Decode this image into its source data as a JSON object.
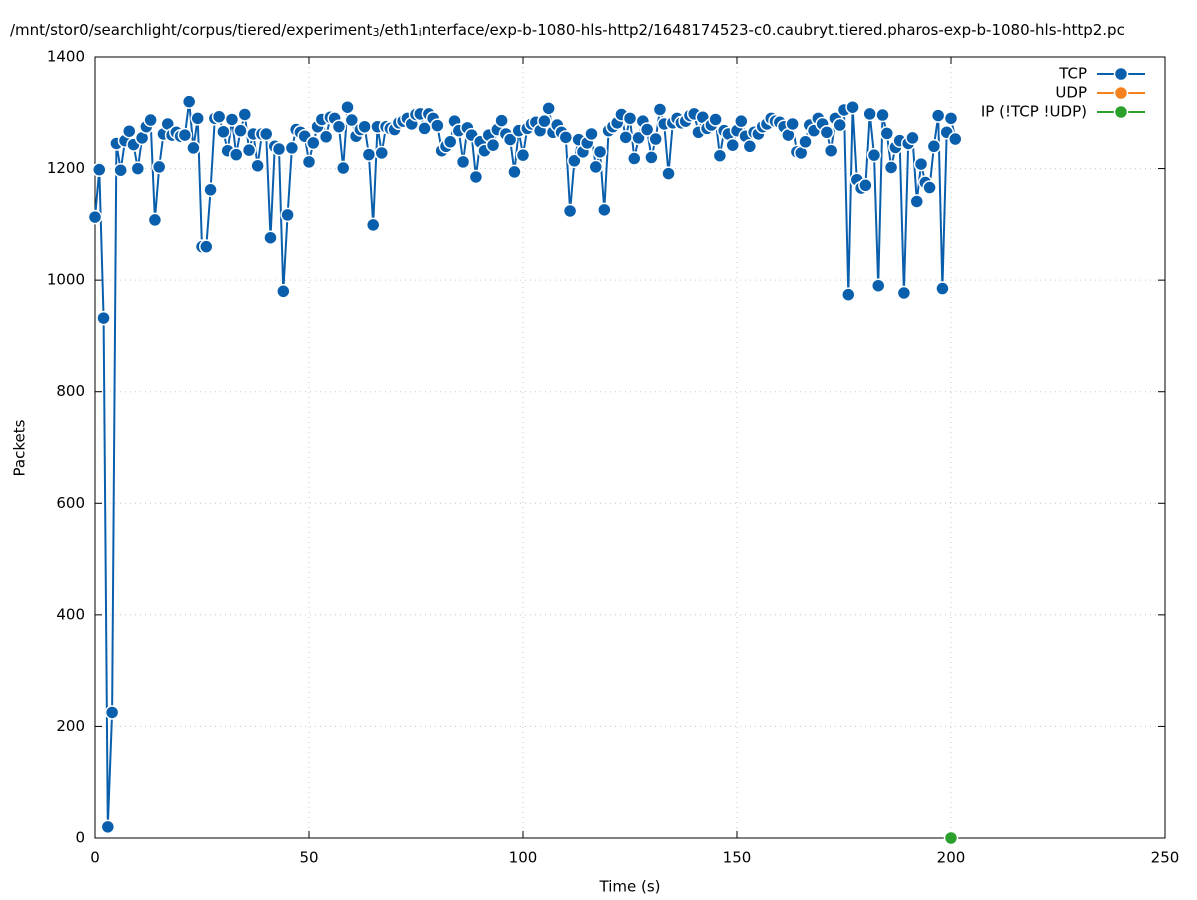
{
  "chart_data": {
    "type": "line",
    "title": [
      "/mnt/stor0/searchlight/corpus/tiered/experiment",
      "3",
      "/eth1",
      "i",
      "nterface/exp-b-1080-hls-http2/1648174523-c0.caubryt.tiered.pharos-exp-b-1080-hls-http2.pc"
    ],
    "xlabel": "Time (s)",
    "ylabel": "Packets",
    "xlim": [
      0,
      250
    ],
    "xticks": [
      0,
      50,
      100,
      150,
      200,
      250
    ],
    "ylim": [
      0,
      1400
    ],
    "yticks": [
      0,
      200,
      400,
      600,
      800,
      1000,
      1200,
      1400
    ],
    "grid": true,
    "legend": "top-right",
    "series": [
      {
        "name": "TCP",
        "color": "#0a5fad",
        "x": [
          0,
          1,
          2,
          3,
          4,
          5,
          6,
          7,
          8,
          9,
          10,
          11,
          12,
          13,
          14,
          15,
          16,
          17,
          18,
          19,
          20,
          21,
          22,
          23,
          24,
          25,
          26,
          27,
          28,
          29,
          30,
          31,
          32,
          33,
          34,
          35,
          36,
          37,
          38,
          39,
          40,
          41,
          42,
          43,
          44,
          45,
          46,
          47,
          48,
          49,
          50,
          51,
          52,
          53,
          54,
          55,
          56,
          57,
          58,
          59,
          60,
          61,
          62,
          63,
          64,
          65,
          66,
          67,
          68,
          69,
          70,
          71,
          72,
          73,
          74,
          75,
          76,
          77,
          78,
          79,
          80,
          81,
          82,
          83,
          84,
          85,
          86,
          87,
          88,
          89,
          90,
          91,
          92,
          93,
          94,
          95,
          96,
          97,
          98,
          99,
          100,
          101,
          102,
          103,
          104,
          105,
          106,
          107,
          108,
          109,
          110,
          111,
          112,
          113,
          114,
          115,
          116,
          117,
          118,
          119,
          120,
          121,
          122,
          123,
          124,
          125,
          126,
          127,
          128,
          129,
          130,
          131,
          132,
          133,
          134,
          135,
          136,
          137,
          138,
          139,
          140,
          141,
          142,
          143,
          144,
          145,
          146,
          147,
          148,
          149,
          150,
          151,
          152,
          153,
          154,
          155,
          156,
          157,
          158,
          159,
          160,
          161,
          162,
          163,
          164,
          165,
          166,
          167,
          168,
          169,
          170,
          171,
          172,
          173,
          174,
          175,
          176,
          177,
          178,
          179,
          180,
          181,
          182,
          183,
          184,
          185,
          186,
          187,
          188,
          189,
          190,
          191,
          192,
          193,
          194,
          195,
          196,
          197,
          198,
          199,
          200,
          201
        ],
        "values": [
          1113,
          1198,
          932,
          20,
          225,
          1245,
          1197,
          1250,
          1267,
          1243,
          1200,
          1255,
          1275,
          1287,
          1108,
          1203,
          1262,
          1280,
          1260,
          1265,
          1258,
          1260,
          1320,
          1237,
          1290,
          1060,
          1060,
          1162,
          1290,
          1293,
          1266,
          1232,
          1288,
          1225,
          1268,
          1297,
          1233,
          1262,
          1205,
          1262,
          1262,
          1076,
          1240,
          1235,
          980,
          1117,
          1237,
          1270,
          1265,
          1258,
          1212,
          1246,
          1275,
          1288,
          1257,
          1292,
          1290,
          1275,
          1201,
          1310,
          1287,
          1258,
          1270,
          1275,
          1225,
          1099,
          1275,
          1228,
          1275,
          1272,
          1270,
          1282,
          1285,
          1290,
          1280,
          1297,
          1298,
          1272,
          1298,
          1290,
          1277,
          1232,
          1240,
          1248,
          1285,
          1268,
          1212,
          1273,
          1260,
          1185,
          1248,
          1232,
          1260,
          1242,
          1270,
          1286,
          1262,
          1252,
          1194,
          1268,
          1224,
          1272,
          1280,
          1283,
          1268,
          1285,
          1308,
          1265,
          1278,
          1265,
          1256,
          1124,
          1214,
          1252,
          1230,
          1246,
          1262,
          1203,
          1230,
          1126,
          1268,
          1275,
          1282,
          1297,
          1256,
          1290,
          1218,
          1255,
          1285,
          1270,
          1220,
          1253,
          1306,
          1280,
          1191,
          1282,
          1290,
          1282,
          1285,
          1295,
          1298,
          1265,
          1292,
          1272,
          1278,
          1288,
          1223,
          1268,
          1262,
          1242,
          1268,
          1285,
          1258,
          1240,
          1265,
          1262,
          1275,
          1280,
          1290,
          1285,
          1283,
          1275,
          1260,
          1280,
          1230,
          1228,
          1248,
          1278,
          1268,
          1290,
          1280,
          1265,
          1232,
          1290,
          1278,
          1305,
          974,
          1310,
          1180,
          1165,
          1170,
          1298,
          1224,
          990,
          1296,
          1263,
          1202,
          1238,
          1250,
          977,
          1245,
          1255,
          1141,
          1208,
          1175,
          1166,
          1240,
          1295,
          985,
          1265,
          1290,
          1253
        ]
      },
      {
        "name": "UDP",
        "color": "#f5821f",
        "x": [],
        "values": []
      },
      {
        "name": "IP (!TCP  !UDP)",
        "color": "#2ca02c",
        "x": [
          200
        ],
        "values": [
          0
        ]
      }
    ]
  }
}
